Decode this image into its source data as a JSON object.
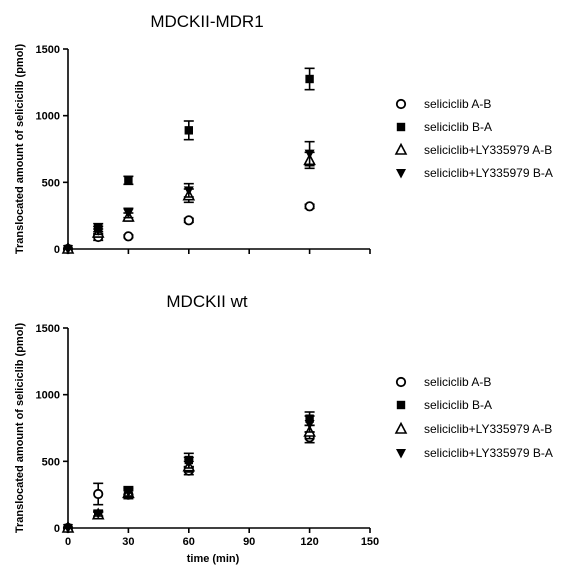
{
  "chart_data": [
    {
      "type": "scatter",
      "title": "MDCKII-MDR1",
      "xlabel": "",
      "ylabel": "Translocated amount of seliciclib (pmol)",
      "xlim": [
        0,
        150
      ],
      "ylim": [
        0,
        1500
      ],
      "xticks": [
        0,
        30,
        60,
        90,
        120,
        150
      ],
      "yticks": [
        0,
        500,
        1000,
        1500
      ],
      "show_xtick_labels": false,
      "legend_position": "right",
      "x": [
        0,
        15,
        30,
        60,
        120
      ],
      "series": [
        {
          "name": "seliciclib A-B",
          "marker": "circle-open",
          "values": [
            0,
            90,
            95,
            215,
            320
          ],
          "errors": [
            0,
            25,
            10,
            15,
            15
          ]
        },
        {
          "name": "seliciclib B-A",
          "marker": "square-filled",
          "values": [
            0,
            160,
            515,
            890,
            1275
          ],
          "errors": [
            0,
            30,
            30,
            70,
            80
          ]
        },
        {
          "name": "seliciclib+LY335979 A-B",
          "marker": "triangle-up-open",
          "values": [
            0,
            120,
            240,
            400,
            665
          ],
          "errors": [
            0,
            30,
            30,
            50,
            60
          ]
        },
        {
          "name": "seliciclib+LY335979 B-A",
          "marker": "triangle-down-filled",
          "values": [
            0,
            140,
            270,
            440,
            715
          ],
          "errors": [
            0,
            30,
            35,
            50,
            90
          ]
        }
      ]
    },
    {
      "type": "scatter",
      "title": "MDCKII wt",
      "xlabel": "time (min)",
      "ylabel": "Translocated amount of seliciclib (pmol)",
      "xlim": [
        0,
        150
      ],
      "ylim": [
        0,
        1500
      ],
      "xticks": [
        0,
        30,
        60,
        90,
        120,
        150
      ],
      "yticks": [
        0,
        500,
        1000,
        1500
      ],
      "show_xtick_labels": true,
      "legend_position": "right",
      "x": [
        0,
        15,
        30,
        60,
        120
      ],
      "series": [
        {
          "name": "seliciclib A-B",
          "marker": "circle-open",
          "values": [
            0,
            255,
            250,
            430,
            680
          ],
          "errors": [
            0,
            80,
            30,
            30,
            40
          ]
        },
        {
          "name": "seliciclib B-A",
          "marker": "square-filled",
          "values": [
            0,
            100,
            280,
            510,
            820
          ],
          "errors": [
            0,
            20,
            30,
            50,
            50
          ]
        },
        {
          "name": "seliciclib+LY335979 A-B",
          "marker": "triangle-up-open",
          "values": [
            0,
            100,
            260,
            460,
            720
          ],
          "errors": [
            0,
            20,
            30,
            40,
            50
          ]
        },
        {
          "name": "seliciclib+LY335979 B-A",
          "marker": "triangle-down-filled",
          "values": [
            0,
            110,
            270,
            490,
            780
          ],
          "errors": [
            0,
            20,
            30,
            40,
            60
          ]
        }
      ]
    }
  ]
}
